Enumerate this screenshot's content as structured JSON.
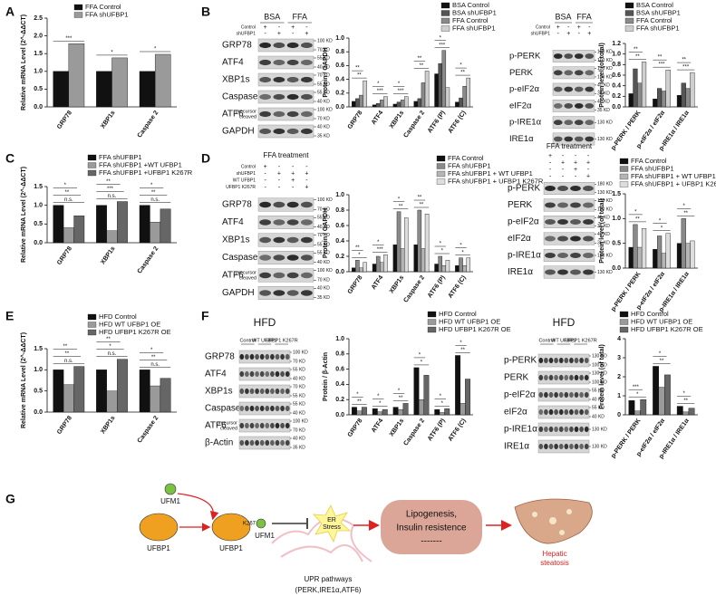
{
  "panel_letters": [
    "A",
    "B",
    "C",
    "D",
    "E",
    "F",
    "G"
  ],
  "chart_data": [
    {
      "type": "bar",
      "ylabel": "Relative mRNA Level (2^-ΔΔCT)",
      "categories": [
        "GRP78",
        "XBP1s",
        "Caspase 2"
      ],
      "series": [
        {
          "name": "FFA Control",
          "color": "#111111",
          "values": [
            1.0,
            1.0,
            1.0
          ]
        },
        {
          "name": "FFA shUFBP1",
          "color": "#9a9a9a",
          "values": [
            1.78,
            1.38,
            1.48
          ]
        }
      ],
      "ylim": [
        0,
        2.5
      ],
      "yticks": [
        {
          "value": 0,
          "label": "0.0"
        },
        0.5,
        {
          "value": 1,
          "label": "1.0"
        },
        1.5,
        {
          "value": 2,
          "label": "2.0"
        },
        2.5
      ],
      "annotations": [
        [
          "***"
        ],
        [
          "*"
        ],
        [
          "*"
        ]
      ]
    },
    {
      "type": "bar",
      "ylabel": "Protein / GAPDH",
      "categories": [
        "GRP78",
        "ATF4",
        "XBP1s",
        "Caspase 2",
        "ATF6 (P)",
        "ATF6 (C)"
      ],
      "series": [
        {
          "name": "BSA Control",
          "color": "#111111",
          "values": [
            0.08,
            0.03,
            0.04,
            0.08,
            0.48,
            0.07
          ]
        },
        {
          "name": "BSA shUFBP1",
          "color": "#555555",
          "values": [
            0.12,
            0.05,
            0.07,
            0.12,
            0.63,
            0.13
          ]
        },
        {
          "name": "FFA Control",
          "color": "#8a8a8a",
          "values": [
            0.17,
            0.1,
            0.1,
            0.35,
            0.82,
            0.3
          ]
        },
        {
          "name": "FFA shUFBP1",
          "color": "#cfcfcf",
          "values": [
            0.38,
            0.15,
            0.15,
            0.52,
            0.28,
            0.42
          ]
        }
      ],
      "ylim": [
        0,
        1
      ],
      "yticks": [
        {
          "value": 0,
          "label": "0.0"
        },
        0.2,
        0.4,
        0.6,
        0.8,
        {
          "value": 1,
          "label": "1.0"
        }
      ],
      "annotations": [
        [
          "**",
          "**"
        ],
        [
          "***",
          "*"
        ],
        [
          "***",
          "*"
        ],
        [
          "**",
          "**"
        ],
        [
          "***",
          "*"
        ],
        [
          "**",
          "*"
        ]
      ]
    },
    {
      "type": "bar",
      "ylabel": "Protein level (of total)",
      "categories": [
        "p-PERK / PERK",
        "p-eIF2α / eIF2α",
        "p-IRE1α / IRE1α"
      ],
      "series": [
        {
          "name": "BSA Control",
          "color": "#111111",
          "values": [
            0.25,
            0.15,
            0.22
          ]
        },
        {
          "name": "BSA shUFBP1",
          "color": "#555555",
          "values": [
            0.72,
            0.35,
            0.45
          ]
        },
        {
          "name": "FFA Control",
          "color": "#8a8a8a",
          "values": [
            0.45,
            0.3,
            0.35
          ]
        },
        {
          "name": "FFA shUFBP1",
          "color": "#cfcfcf",
          "values": [
            0.85,
            0.7,
            0.65
          ]
        }
      ],
      "ylim": [
        0,
        1.2
      ],
      "yticks": [
        {
          "value": 0,
          "label": "0.0"
        },
        0.2,
        0.4,
        0.6,
        0.8,
        {
          "value": 1,
          "label": "1.0"
        },
        1.2
      ],
      "annotations": [
        [
          "**",
          "**"
        ],
        [
          "***",
          "**"
        ],
        [
          "***",
          "**"
        ]
      ]
    },
    {
      "type": "bar",
      "ylabel": "Relative mRNA Level (2^-ΔΔCT)",
      "categories": [
        "GRP78",
        "XBP1s",
        "Caspase 2"
      ],
      "series": [
        {
          "name": "FFA  shUFBP1",
          "color": "#111111",
          "values": [
            1.0,
            1.0,
            1.0
          ]
        },
        {
          "name": "FFA  shUFBP1 +WT UFBP1",
          "color": "#9a9a9a",
          "values": [
            0.4,
            0.32,
            0.55
          ]
        },
        {
          "name": "FFA  shUFBP1 +UFBP1 K267R",
          "color": "#666666",
          "values": [
            0.72,
            1.1,
            0.9
          ]
        }
      ],
      "ylim": [
        0,
        1.5
      ],
      "yticks": [
        {
          "value": 0,
          "label": "0.0"
        },
        0.5,
        {
          "value": 1,
          "label": "1.0"
        },
        1.5
      ],
      "annotations": [
        [
          "n.s.",
          "**",
          "*"
        ],
        [
          "n.s.",
          "***",
          "**"
        ],
        [
          "n.s.",
          "**",
          "*"
        ]
      ]
    },
    {
      "type": "bar",
      "ylabel": "Protein / GAPDH",
      "categories": [
        "GRP78",
        "ATF4",
        "XBP1s",
        "Caspase 2",
        "ATF6 (P)",
        "ATF6 (C)"
      ],
      "series": [
        {
          "name": "FFA Control",
          "color": "#111111",
          "values": [
            0.05,
            0.1,
            0.35,
            0.35,
            0.1,
            0.08
          ]
        },
        {
          "name": "FFA shUFBP1",
          "color": "#8a8a8a",
          "values": [
            0.15,
            0.2,
            0.78,
            0.8,
            0.2,
            0.18
          ]
        },
        {
          "name": "FFA shUFBP1 + WT UFBP1",
          "color": "#b5b5b5",
          "values": [
            0.05,
            0.12,
            0.3,
            0.3,
            0.08,
            0.08
          ]
        },
        {
          "name": "FFA shUFBP1 + UFBP1 K267R",
          "color": "#dddddd",
          "values": [
            0.12,
            0.22,
            0.7,
            0.75,
            0.15,
            0.18
          ]
        }
      ],
      "ylim": [
        0,
        1
      ],
      "yticks": [
        {
          "value": 0,
          "label": "0.0"
        },
        0.2,
        0.4,
        0.6,
        0.8,
        {
          "value": 1,
          "label": "1.0"
        }
      ],
      "annotations": [
        [
          "*",
          "**"
        ],
        [
          "***",
          "*"
        ],
        [
          "**",
          "*"
        ],
        [
          "**",
          "**"
        ],
        [
          "*",
          "*"
        ],
        [
          "*",
          "*"
        ]
      ]
    },
    {
      "type": "bar",
      "ylabel": "Protein level (of total)",
      "categories": [
        "p-PERK / PERK",
        "p-eIF2α / eIF2α",
        "p-IRE1α / IRE1α"
      ],
      "series": [
        {
          "name": "FFA Control",
          "color": "#111111",
          "values": [
            0.42,
            0.38,
            0.5
          ]
        },
        {
          "name": "FFA shUFBP1",
          "color": "#8a8a8a",
          "values": [
            0.88,
            0.65,
            1.0
          ]
        },
        {
          "name": "FFA shUFBP1 + WT UFBP1",
          "color": "#b5b5b5",
          "values": [
            0.42,
            0.3,
            0.5
          ]
        },
        {
          "name": "FFA shUFBP1 + UFBP1 K267R",
          "color": "#dddddd",
          "values": [
            0.8,
            0.7,
            0.55
          ]
        }
      ],
      "ylim": [
        0,
        1.5
      ],
      "yticks": [
        {
          "value": 0,
          "label": "0.0"
        },
        0.5,
        {
          "value": 1,
          "label": "1.0"
        },
        1.5
      ],
      "annotations": [
        [
          "**",
          "*"
        ],
        [
          "*",
          "*"
        ],
        [
          "**",
          "*"
        ]
      ]
    },
    {
      "type": "bar",
      "ylabel": "Relative mRNA Level (2^-ΔΔCT)",
      "categories": [
        "GRP78",
        "XBP1s",
        "Caspase 2"
      ],
      "series": [
        {
          "name": "HFD Control",
          "color": "#111111",
          "values": [
            1.0,
            1.0,
            1.0
          ]
        },
        {
          "name": "HFD WT UFBP1 OE",
          "color": "#9a9a9a",
          "values": [
            0.65,
            0.5,
            0.62
          ]
        },
        {
          "name": "HFD UFBP1 K267R OE",
          "color": "#666666",
          "values": [
            1.08,
            1.25,
            0.8
          ]
        }
      ],
      "ylim": [
        0,
        1.5
      ],
      "yticks": [
        {
          "value": 0,
          "label": "0.0"
        },
        0.5,
        {
          "value": 1,
          "label": "1.0"
        },
        1.5
      ],
      "annotations": [
        [
          "n.s.",
          "**",
          "**"
        ],
        [
          "n.s.",
          "*",
          "**"
        ],
        [
          "n.s.",
          "**",
          "*"
        ]
      ]
    },
    {
      "type": "bar",
      "ylabel": "Protein / β-Actin",
      "categories": [
        "GRP78",
        "ATF4",
        "XBP1s",
        "Caspase 2",
        "ATF6 (P)",
        "ATF6 (C)"
      ],
      "series": [
        {
          "name": "HFD Control",
          "color": "#111111",
          "values": [
            0.1,
            0.08,
            0.1,
            0.62,
            0.07,
            0.78
          ]
        },
        {
          "name": "HFD WT UFBP1 OE",
          "color": "#9a9a9a",
          "values": [
            0.05,
            0.04,
            0.07,
            0.2,
            0.03,
            0.15
          ]
        },
        {
          "name": "HFD UFBP1 K267R OE",
          "color": "#666666",
          "values": [
            0.1,
            0.07,
            0.15,
            0.52,
            0.08,
            0.47
          ]
        }
      ],
      "ylim": [
        0,
        1
      ],
      "yticks": [
        {
          "value": 0,
          "label": "0.0"
        },
        0.2,
        0.4,
        0.6,
        0.8,
        {
          "value": 1,
          "label": "1.0"
        }
      ],
      "annotations": [
        [
          "**",
          "*"
        ],
        [
          "*",
          "*"
        ],
        [
          "**",
          "*"
        ],
        [
          "*",
          "*"
        ],
        [
          "*",
          "*"
        ],
        [
          "**",
          "*"
        ]
      ]
    },
    {
      "type": "bar",
      "ylabel": "Protein level (of total)",
      "categories": [
        "p-PERK / PERK",
        "p-eIF2α / eIF2α",
        "p-IRE1α / IRE1α"
      ],
      "series": [
        {
          "name": "HFD Control",
          "color": "#111111",
          "values": [
            0.75,
            2.55,
            0.45
          ]
        },
        {
          "name": "HFD WT UFBP1 OE",
          "color": "#9a9a9a",
          "values": [
            0.2,
            1.45,
            0.15
          ]
        },
        {
          "name": "HFD UFBP1 K267R OE",
          "color": "#666666",
          "values": [
            0.8,
            2.1,
            0.35
          ]
        }
      ],
      "ylim": [
        0,
        4
      ],
      "yticks": [
        0,
        1,
        2,
        3,
        4
      ],
      "annotations": [
        [
          "*",
          "***"
        ],
        [
          "**",
          "*"
        ],
        [
          "**",
          "*"
        ]
      ]
    }
  ],
  "blots": [
    {
      "groups": [
        "BSA",
        "FFA"
      ],
      "conditions": [
        {
          "label": "Control",
          "signs": [
            "+",
            "-",
            "+",
            "-"
          ]
        },
        {
          "label": "shUFBP1",
          "signs": [
            "-",
            "+",
            "-",
            "+"
          ]
        }
      ],
      "rows": [
        {
          "label": "GRP78",
          "kd": [
            "100 KD",
            "70 KD"
          ]
        },
        {
          "label": "ATF4",
          "kd": [
            "55 KD",
            "40 KD"
          ]
        },
        {
          "label": "XBP1s",
          "kd": [
            "70 KD",
            "55 KD"
          ]
        },
        {
          "label": "Caspase2",
          "kd": [
            "55 KD",
            "40 KD"
          ]
        },
        {
          "label": "ATF6",
          "sublabels": [
            "precursor",
            "cleaved"
          ],
          "kd": [
            "100 KD",
            "70 KD"
          ]
        },
        {
          "label": "GAPDH",
          "kd": [
            "40 KD",
            "35 KD"
          ]
        }
      ]
    },
    {
      "groups": [
        "BSA",
        "FFA"
      ],
      "conditions": [
        {
          "label": "Control",
          "signs": [
            "+",
            "-",
            "+",
            "-"
          ]
        },
        {
          "label": "shUFBP1",
          "signs": [
            "-",
            "+",
            "-",
            "+"
          ]
        }
      ],
      "rows": [
        {
          "label": "p-PERK",
          "kd": [
            "130 KD",
            "100 KD"
          ]
        },
        {
          "label": "PERK",
          "kd": [
            "130 KD",
            "100 KD"
          ]
        },
        {
          "label": "p-eIF2α",
          "kd": [
            "40 KD",
            "35 KD"
          ]
        },
        {
          "label": "eIF2α",
          "kd": [
            "40 KD",
            "35 KD"
          ]
        },
        {
          "label": "p-IRE1α",
          "kd": [
            "130 KD"
          ]
        },
        {
          "label": "IRE1α",
          "kd": [
            "130 KD"
          ]
        }
      ]
    },
    {
      "title": "FFA treatment",
      "conditions": [
        {
          "label": "Control",
          "signs": [
            "+",
            "-",
            "-",
            "-"
          ]
        },
        {
          "label": "shUFBP1",
          "signs": [
            "-",
            "+",
            "+",
            "+"
          ]
        },
        {
          "label": "WT UFBP1",
          "signs": [
            "-",
            "-",
            "+",
            "-"
          ]
        },
        {
          "label": "UFBP1 K267R",
          "signs": [
            "-",
            "-",
            "-",
            "+"
          ]
        }
      ],
      "rows": [
        {
          "label": "GRP78",
          "kd": [
            "100 KD",
            "70 KD"
          ]
        },
        {
          "label": "ATF4",
          "kd": [
            "55 KD",
            "40 KD"
          ]
        },
        {
          "label": "XBP1s",
          "kd": [
            "70 KD",
            "55 KD"
          ]
        },
        {
          "label": "Caspase2",
          "kd": [
            "55 KD",
            "40 KD"
          ]
        },
        {
          "label": "ATF6",
          "sublabels": [
            "precursor",
            "cleaved"
          ],
          "kd": [
            "100 KD",
            "70 KD"
          ]
        },
        {
          "label": "GAPDH",
          "kd": [
            "40 KD",
            "35 KD"
          ]
        }
      ]
    },
    {
      "title": "FFA treatment",
      "conditions": [
        {
          "signs": [
            "+",
            "-",
            "-",
            "-"
          ]
        },
        {
          "signs": [
            "-",
            "+",
            "+",
            "+"
          ]
        },
        {
          "signs": [
            "-",
            "-",
            "+",
            "-"
          ]
        },
        {
          "signs": [
            "-",
            "-",
            "-",
            "+"
          ]
        }
      ],
      "rows": [
        {
          "label": "p-PERK",
          "kd": [
            "180 KD",
            "130 KD"
          ]
        },
        {
          "label": "PERK",
          "kd": [
            "130 KD",
            "100 KD"
          ]
        },
        {
          "label": "p-eIF2α",
          "kd": [
            "40 KD",
            "35 KD"
          ]
        },
        {
          "label": "eIF2α",
          "kd": [
            "40 KD",
            "35 KD"
          ]
        },
        {
          "label": "p-IRE1α",
          "kd": [
            "130 KD"
          ]
        },
        {
          "label": "IRE1α",
          "kd": [
            "130 KD"
          ]
        }
      ]
    },
    {
      "title": "HFD",
      "groups": [
        "Control",
        "WT UFBP1",
        "UFBP1 K267R"
      ],
      "rows": [
        {
          "label": "GRP78",
          "kd": [
            "100 KD",
            "70 KD"
          ]
        },
        {
          "label": "ATF4",
          "kd": [
            "55 KD",
            "40 KD"
          ]
        },
        {
          "label": "XBP1s",
          "kd": [
            "70 KD",
            "55 KD"
          ]
        },
        {
          "label": "Caspase2",
          "kd": [
            "55 KD",
            "40 KD"
          ]
        },
        {
          "label": "ATF6",
          "sublabels": [
            "precursor",
            "cleaved"
          ],
          "kd": [
            "100 KD",
            "70 KD"
          ]
        },
        {
          "label": "β-Actin",
          "kd": [
            "40 KD",
            "35 KD"
          ]
        }
      ]
    },
    {
      "title": "HFD",
      "groups": [
        "Control",
        "WT UFBP1",
        "UFBP1 K267R"
      ],
      "rows": [
        {
          "label": "p-PERK",
          "kd": [
            "130 KD",
            "100 KD"
          ]
        },
        {
          "label": "PERK",
          "kd": [
            "130 KD",
            "100 KD"
          ]
        },
        {
          "label": "p-eIF2α",
          "kd": [
            "55 KD",
            "40 KD"
          ]
        },
        {
          "label": "eIF2α",
          "kd": [
            "55 KD",
            "40 KD"
          ]
        },
        {
          "label": "p-IRE1α",
          "kd": [
            "130 KD"
          ]
        },
        {
          "label": "IRE1α",
          "kd": [
            "130 KD"
          ]
        }
      ]
    }
  ],
  "diagram": {
    "ufm1_free": "UFM1",
    "ufbp1": "UFBP1",
    "ufbp1_conj": "UFBP1",
    "site": "K267",
    "ufm1_conj": "UFM1",
    "er_stress": [
      "ER",
      "Stress"
    ],
    "upr": [
      "UPR pathways",
      "(PERK,IRE1α,ATF6)"
    ],
    "outcome": [
      "Lipogenesis,",
      "Insulin resistence",
      "-------"
    ],
    "result": [
      "Hepatic",
      "steatosis"
    ]
  }
}
